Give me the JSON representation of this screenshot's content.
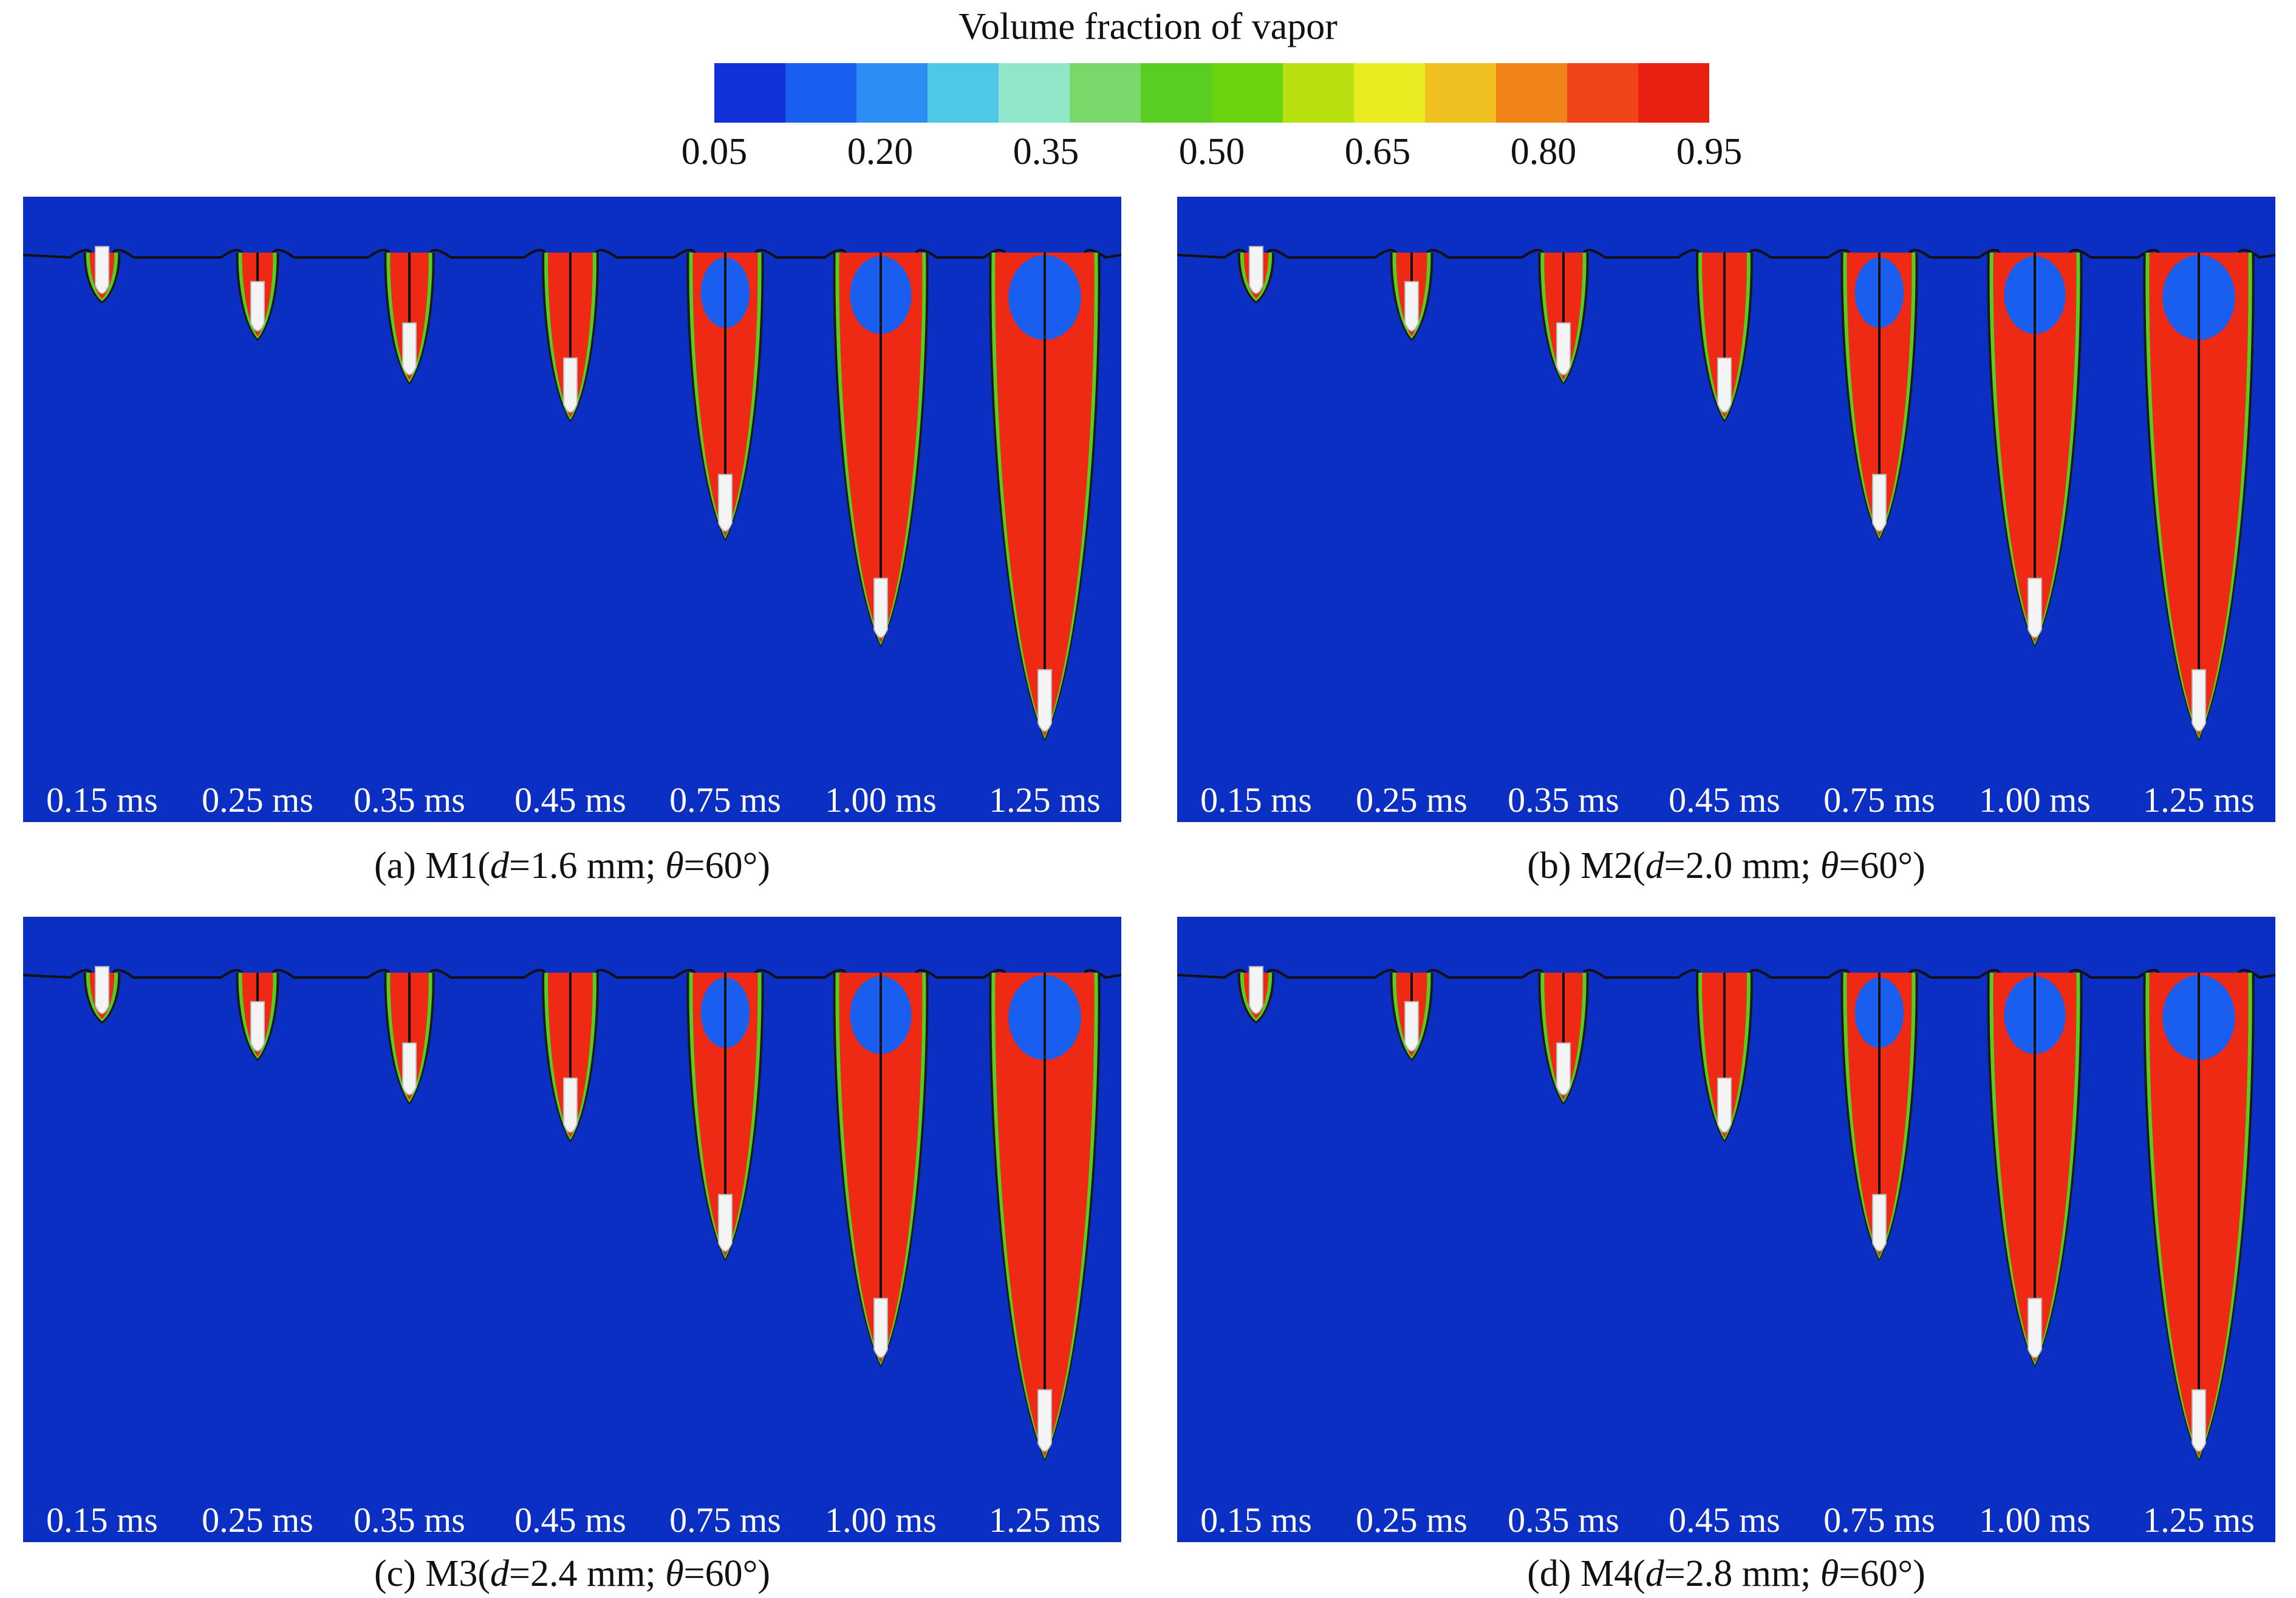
{
  "legend": {
    "title": "Volume fraction of vapor",
    "ticks": [
      "0.05",
      "0.20",
      "0.35",
      "0.50",
      "0.65",
      "0.80",
      "0.95"
    ],
    "min": 0.05,
    "max": 0.95,
    "colors": [
      "#1030d8",
      "#1a5ef0",
      "#2b8ef2",
      "#4fc8e8",
      "#8fe6c8",
      "#7ad86a",
      "#58cc20",
      "#6ad410",
      "#b8e010",
      "#e8ec20",
      "#f0c020",
      "#f08418",
      "#f04418",
      "#e82010"
    ]
  },
  "panels": [
    {
      "prefix": "(a) M1(",
      "d_symbol": "d",
      "d_value": "=1.6 mm; ",
      "theta_symbol": "θ",
      "theta_value": "=60°)",
      "depths": [
        0.07,
        0.13,
        0.2,
        0.26,
        0.45,
        0.62,
        0.77
      ],
      "times": [
        "0.15 ms",
        "0.25 ms",
        "0.35 ms",
        "0.45 ms",
        "0.75 ms",
        "1.00 ms",
        "1.25 ms"
      ]
    },
    {
      "prefix": "(b) M2(",
      "d_symbol": "d",
      "d_value": "=2.0 mm; ",
      "theta_symbol": "θ",
      "theta_value": "=60°)",
      "depths": [
        0.07,
        0.13,
        0.2,
        0.26,
        0.45,
        0.62,
        0.77
      ],
      "times": [
        "0.15 ms",
        "0.25 ms",
        "0.35 ms",
        "0.45 ms",
        "0.75 ms",
        "1.00 ms",
        "1.25 ms"
      ]
    },
    {
      "prefix": "(c) M3(",
      "d_symbol": "d",
      "d_value": "=2.4 mm; ",
      "theta_symbol": "θ",
      "theta_value": "=60°)",
      "depths": [
        0.07,
        0.13,
        0.2,
        0.26,
        0.45,
        0.62,
        0.77
      ],
      "times": [
        "0.15 ms",
        "0.25 ms",
        "0.35 ms",
        "0.45 ms",
        "0.75 ms",
        "1.00 ms",
        "1.25 ms"
      ]
    },
    {
      "prefix": "(d) M4(",
      "d_symbol": "d",
      "d_value": "=2.8 mm; ",
      "theta_symbol": "θ",
      "theta_value": "=60°)",
      "depths": [
        0.07,
        0.13,
        0.2,
        0.26,
        0.45,
        0.62,
        0.77
      ],
      "times": [
        "0.15 ms",
        "0.25 ms",
        "0.35 ms",
        "0.45 ms",
        "0.75 ms",
        "1.00 ms",
        "1.25 ms"
      ]
    }
  ]
}
